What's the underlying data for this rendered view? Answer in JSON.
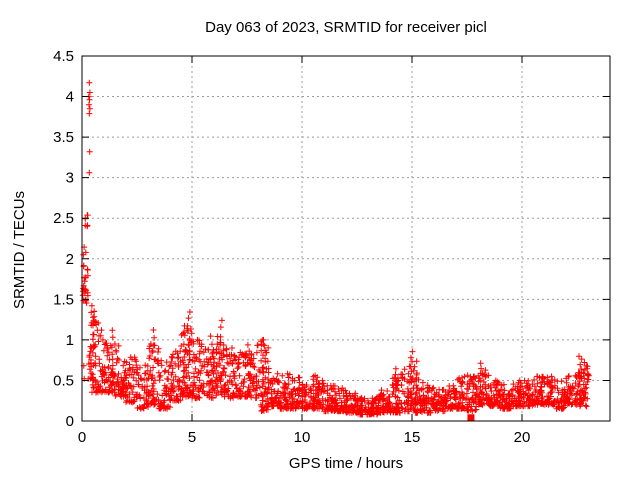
{
  "window": {
    "title": "Day 063 of 2023, SRMTID for receiver picl"
  },
  "colors": {
    "marker": "#ff0000",
    "grid": "#9e9e9e",
    "axis": "#000000",
    "background": "#ffffff",
    "text": "#000000"
  },
  "chart_data": {
    "type": "scatter",
    "title": "Day 063 of 2023, SRMTID for receiver picl",
    "xlabel": "GPS time / hours",
    "ylabel": "SRMTID / TECUs",
    "xlim": [
      0,
      24
    ],
    "ylim": [
      0,
      4.5
    ],
    "xticks": [
      0,
      5,
      10,
      15,
      20
    ],
    "xtick_labels": [
      "0",
      "5",
      "10",
      "15",
      "20"
    ],
    "yticks": [
      0,
      0.5,
      1,
      1.5,
      2,
      2.5,
      3,
      3.5,
      4,
      4.5
    ],
    "ytick_labels": [
      "0",
      "0.5",
      "1",
      "1.5",
      "2",
      "2.5",
      "3",
      "3.5",
      "4",
      "4.5"
    ],
    "grid": true,
    "grid_style": "dotted",
    "legend": "none",
    "marker": {
      "shape": "plus",
      "color": "#ff0000",
      "size": 7
    },
    "description": "Dense scatter of SRMTID values over one day; high burst near 0.3h reaching 4.2 TECUs, decaying to a 0.2-0.6 band with wave spikes near 4.8, 6.3, 8.2, 15.0 and 22.7 hours; quietest around 12.5-13.5h; data ends near 23h.",
    "bands": [
      [
        0.02,
        0.28,
        1.45,
        2.35,
        26
      ],
      [
        0.1,
        0.3,
        2.4,
        2.62,
        6
      ],
      [
        0.28,
        0.55,
        0.5,
        1.3,
        16
      ],
      [
        0.3,
        0.9,
        0.9,
        1.45,
        12
      ],
      [
        0.35,
        1.0,
        0.35,
        0.9,
        42
      ],
      [
        1.0,
        1.5,
        0.35,
        1.0,
        48
      ],
      [
        1.5,
        2.0,
        0.3,
        0.95,
        48
      ],
      [
        2.0,
        2.5,
        0.22,
        0.8,
        46
      ],
      [
        2.5,
        3.0,
        0.15,
        0.7,
        44
      ],
      [
        3.0,
        3.5,
        0.2,
        0.95,
        46
      ],
      [
        3.5,
        4.0,
        0.15,
        0.75,
        46
      ],
      [
        4.0,
        4.5,
        0.25,
        0.9,
        46
      ],
      [
        4.5,
        5.0,
        0.3,
        1.2,
        50
      ],
      [
        5.0,
        5.5,
        0.28,
        1.0,
        46
      ],
      [
        5.5,
        6.0,
        0.28,
        0.95,
        46
      ],
      [
        6.0,
        6.5,
        0.3,
        1.1,
        48
      ],
      [
        6.5,
        7.0,
        0.28,
        0.9,
        46
      ],
      [
        7.0,
        7.5,
        0.3,
        0.85,
        46
      ],
      [
        7.5,
        8.0,
        0.28,
        0.95,
        46
      ],
      [
        8.0,
        8.5,
        0.12,
        1.0,
        48
      ],
      [
        8.5,
        9.0,
        0.18,
        0.75,
        44
      ],
      [
        9.0,
        9.5,
        0.15,
        0.6,
        44
      ],
      [
        9.5,
        10.0,
        0.15,
        0.55,
        44
      ],
      [
        10.0,
        10.5,
        0.15,
        0.5,
        46
      ],
      [
        10.5,
        11.0,
        0.15,
        0.55,
        46
      ],
      [
        11.0,
        11.5,
        0.12,
        0.45,
        46
      ],
      [
        11.5,
        12.0,
        0.12,
        0.42,
        46
      ],
      [
        12.0,
        12.5,
        0.1,
        0.35,
        46
      ],
      [
        12.5,
        13.0,
        0.08,
        0.3,
        46
      ],
      [
        13.0,
        13.5,
        0.08,
        0.3,
        46
      ],
      [
        13.5,
        14.0,
        0.1,
        0.4,
        46
      ],
      [
        14.0,
        14.5,
        0.1,
        0.55,
        46
      ],
      [
        14.5,
        15.0,
        0.12,
        0.7,
        46
      ],
      [
        15.0,
        15.5,
        0.1,
        0.65,
        46
      ],
      [
        15.5,
        16.0,
        0.1,
        0.45,
        44
      ],
      [
        16.0,
        16.5,
        0.12,
        0.4,
        44
      ],
      [
        16.5,
        17.0,
        0.15,
        0.45,
        44
      ],
      [
        17.0,
        17.5,
        0.15,
        0.55,
        44
      ],
      [
        17.5,
        18.0,
        0.12,
        0.55,
        44
      ],
      [
        18.0,
        18.5,
        0.2,
        0.65,
        46
      ],
      [
        18.5,
        19.0,
        0.18,
        0.5,
        44
      ],
      [
        19.0,
        19.5,
        0.15,
        0.45,
        44
      ],
      [
        19.5,
        20.0,
        0.18,
        0.5,
        44
      ],
      [
        20.0,
        20.5,
        0.18,
        0.5,
        44
      ],
      [
        20.5,
        21.0,
        0.2,
        0.55,
        44
      ],
      [
        21.0,
        21.5,
        0.2,
        0.55,
        44
      ],
      [
        21.5,
        22.0,
        0.15,
        0.5,
        44
      ],
      [
        22.0,
        22.5,
        0.2,
        0.6,
        44
      ],
      [
        22.5,
        23.05,
        0.18,
        0.7,
        40
      ]
    ],
    "spikes": [
      [
        0.55,
        0.5,
        1.3,
        6
      ],
      [
        1.35,
        0.45,
        1.18,
        8
      ],
      [
        3.25,
        0.3,
        1.22,
        9
      ],
      [
        4.65,
        0.4,
        1.25,
        8
      ],
      [
        4.85,
        0.4,
        1.42,
        12
      ],
      [
        5.35,
        0.35,
        1.05,
        6
      ],
      [
        5.9,
        0.35,
        1.12,
        7
      ],
      [
        6.3,
        0.35,
        1.3,
        10
      ],
      [
        7.6,
        0.3,
        0.95,
        7
      ],
      [
        8.2,
        0.3,
        1.08,
        9
      ],
      [
        8.45,
        0.25,
        0.9,
        6
      ],
      [
        10.6,
        0.2,
        0.6,
        5
      ],
      [
        14.3,
        0.15,
        0.68,
        8
      ],
      [
        15.0,
        0.15,
        0.9,
        12
      ],
      [
        15.15,
        0.2,
        0.78,
        8
      ],
      [
        17.5,
        0.15,
        0.6,
        6
      ],
      [
        18.15,
        0.25,
        0.75,
        9
      ],
      [
        20.9,
        0.25,
        0.58,
        5
      ],
      [
        22.65,
        0.2,
        0.85,
        12
      ],
      [
        22.8,
        0.25,
        0.75,
        8
      ]
    ],
    "outlier_points": [
      [
        0.33,
        4.17
      ],
      [
        0.36,
        4.05
      ],
      [
        0.31,
        4.0
      ],
      [
        0.34,
        3.96
      ],
      [
        0.32,
        3.9
      ],
      [
        0.36,
        3.85
      ],
      [
        0.33,
        3.79
      ],
      [
        0.35,
        3.32
      ],
      [
        0.33,
        3.06
      ],
      [
        0.45,
        1.42
      ],
      [
        0.55,
        1.35
      ],
      [
        0.5,
        1.28
      ],
      [
        0.62,
        1.22
      ],
      [
        0.42,
        1.18
      ],
      [
        0.7,
        1.12
      ],
      [
        0.85,
        1.05
      ],
      [
        0.95,
        1.0
      ],
      [
        0.75,
        0.98
      ],
      [
        0.58,
        0.92
      ],
      [
        0.08,
        0.68
      ],
      [
        0.1,
        0.52
      ]
    ],
    "special_points": [
      {
        "x": 17.68,
        "y": 0.04,
        "marker": "filled-square"
      }
    ]
  }
}
